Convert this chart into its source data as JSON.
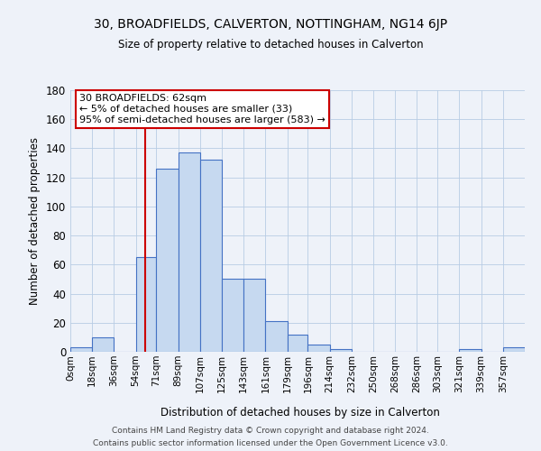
{
  "title": "30, BROADFIELDS, CALVERTON, NOTTINGHAM, NG14 6JP",
  "subtitle": "Size of property relative to detached houses in Calverton",
  "bar_labels": [
    "0sqm",
    "18sqm",
    "36sqm",
    "54sqm",
    "71sqm",
    "89sqm",
    "107sqm",
    "125sqm",
    "143sqm",
    "161sqm",
    "179sqm",
    "196sqm",
    "214sqm",
    "232sqm",
    "250sqm",
    "268sqm",
    "286sqm",
    "303sqm",
    "321sqm",
    "339sqm",
    "357sqm"
  ],
  "bar_heights": [
    3,
    10,
    0,
    65,
    126,
    137,
    132,
    50,
    50,
    21,
    12,
    5,
    2,
    0,
    0,
    0,
    0,
    0,
    2,
    0,
    3
  ],
  "bar_color": "#c6d9f0",
  "bar_edge_color": "#4472c4",
  "bin_edges": [
    0,
    18,
    36,
    54,
    71,
    89,
    107,
    125,
    143,
    161,
    179,
    196,
    214,
    232,
    250,
    268,
    286,
    303,
    321,
    339,
    357,
    375
  ],
  "vline_x": 62,
  "vline_color": "#cc0000",
  "ylabel": "Number of detached properties",
  "xlabel": "Distribution of detached houses by size in Calverton",
  "ylim": [
    0,
    180
  ],
  "yticks": [
    0,
    20,
    40,
    60,
    80,
    100,
    120,
    140,
    160,
    180
  ],
  "annotation_title": "30 BROADFIELDS: 62sqm",
  "annotation_line1": "← 5% of detached houses are smaller (33)",
  "annotation_line2": "95% of semi-detached houses are larger (583) →",
  "annotation_box_color": "#cc0000",
  "footer_line1": "Contains HM Land Registry data © Crown copyright and database right 2024.",
  "footer_line2": "Contains public sector information licensed under the Open Government Licence v3.0.",
  "grid_color": "#b8cce4",
  "background_color": "#eef2f9"
}
